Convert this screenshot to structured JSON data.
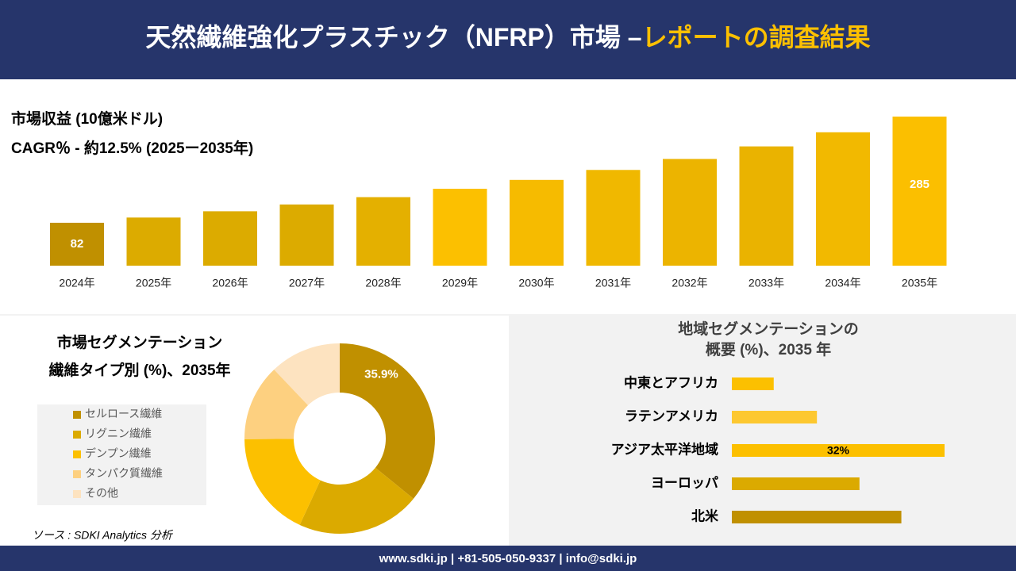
{
  "header": {
    "title_main": "天然繊維強化プラスチック（NFRP）市場 –",
    "title_highlight": "レポートの調査結果"
  },
  "chart_data": [
    {
      "type": "bar",
      "subtitle_lines": [
        "市場収益 (10億米ドル)",
        "CAGR％ - 約12.5% (2025ー2035年)"
      ],
      "categories": [
        "2024年",
        "2025年",
        "2026年",
        "2027年",
        "2028年",
        "2029年",
        "2030年",
        "2031年",
        "2032年",
        "2033年",
        "2034年",
        "2035年"
      ],
      "values": [
        82,
        92,
        104,
        117,
        131,
        147,
        164,
        183,
        204,
        228,
        255,
        285
      ],
      "value_labels": [
        "82",
        null,
        null,
        null,
        null,
        null,
        null,
        null,
        null,
        null,
        null,
        "285"
      ],
      "colors": [
        "#c09000",
        "#dcab00",
        "#dcab00",
        "#dcab00",
        "#e4b000",
        "#fcc000",
        "#f6bb00",
        "#f0b800",
        "#ecb400",
        "#eab300",
        "#f2b900",
        "#fbbf00"
      ]
    },
    {
      "type": "donut",
      "title_lines": [
        "市場セグメンテーション",
        "繊維タイプ別 (%)、2035年"
      ],
      "categories": [
        "セルロース繊維",
        "リグニン繊維",
        "デンプン繊維",
        "タンパク質繊維",
        "その他"
      ],
      "values": [
        35.9,
        21,
        18,
        13,
        12.1
      ],
      "value_labels": [
        "35.9%",
        null,
        null,
        null,
        null
      ],
      "colors": [
        "#c09000",
        "#dbaa00",
        "#fcc000",
        "#fdd080",
        "#fde3c0"
      ]
    },
    {
      "type": "hbar",
      "title_lines": [
        "地域セグメンテーションの",
        "概要 (%)、2035 年"
      ],
      "categories": [
        "中東とアフリカ",
        "ラテンアメリカ",
        "アジア太平洋地域",
        "ヨーロッパ",
        "北米"
      ],
      "values": [
        6.3,
        12.8,
        32,
        19.2,
        25.5
      ],
      "value_labels": [
        null,
        null,
        "32%",
        null,
        null
      ],
      "colors": [
        "#fcc000",
        "#fdc830",
        "#fcc000",
        "#dbaa00",
        "#c09000"
      ]
    }
  ],
  "source": "ソース : SDKI Analytics 分析",
  "footer": {
    "contact": "www.sdki.jp | +81-505-050-9337 | info@sdki.jp"
  }
}
